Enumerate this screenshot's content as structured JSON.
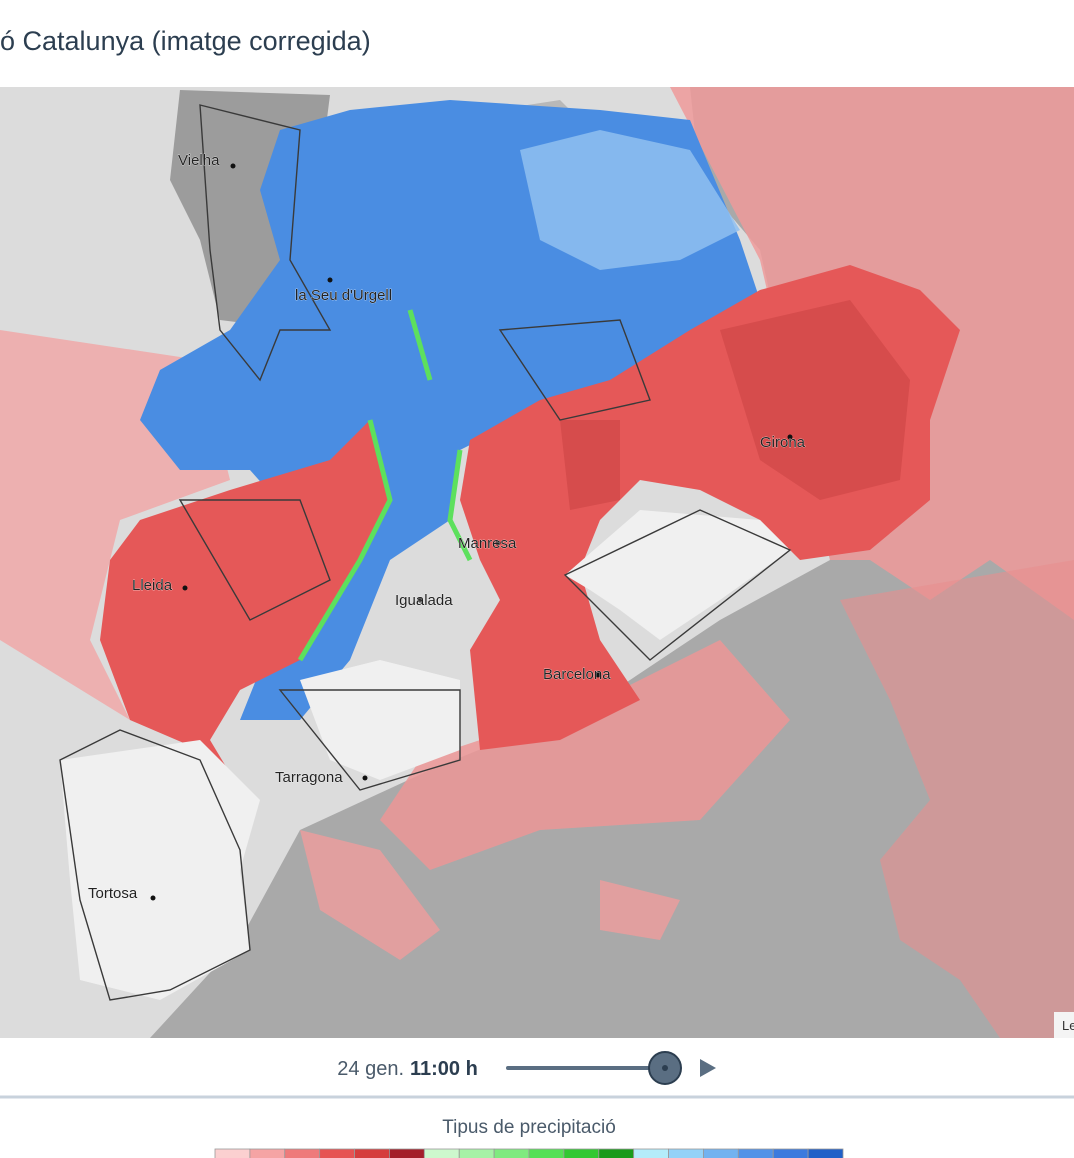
{
  "header": {
    "title": "ó Catalunya (imatge corregida)"
  },
  "map": {
    "places": [
      {
        "label": "Vielha"
      },
      {
        "label": "la Seu d'Urgell"
      },
      {
        "label": "Girona"
      },
      {
        "label": "Lleida"
      },
      {
        "label": "Manresa"
      },
      {
        "label": "Igualada"
      },
      {
        "label": "Barcelona"
      },
      {
        "label": "Tarragona"
      },
      {
        "label": "Tortosa"
      }
    ],
    "attribution": "Le"
  },
  "controls": {
    "date": "24 gen.",
    "time": "11:00 h"
  },
  "legend": {
    "title": "Tipus de precipitació",
    "colors": [
      "#fbd0d0",
      "#f5a4a4",
      "#ee7a7a",
      "#e65353",
      "#d53d3d",
      "#a31f2a",
      "#cdf8cd",
      "#a6f2a6",
      "#7fea7f",
      "#55e055",
      "#32c832",
      "#1a9a1a",
      "#b4ecfa",
      "#94d2f8",
      "#72b2f0",
      "#5292e8",
      "#3c7ade",
      "#2160c8"
    ]
  }
}
